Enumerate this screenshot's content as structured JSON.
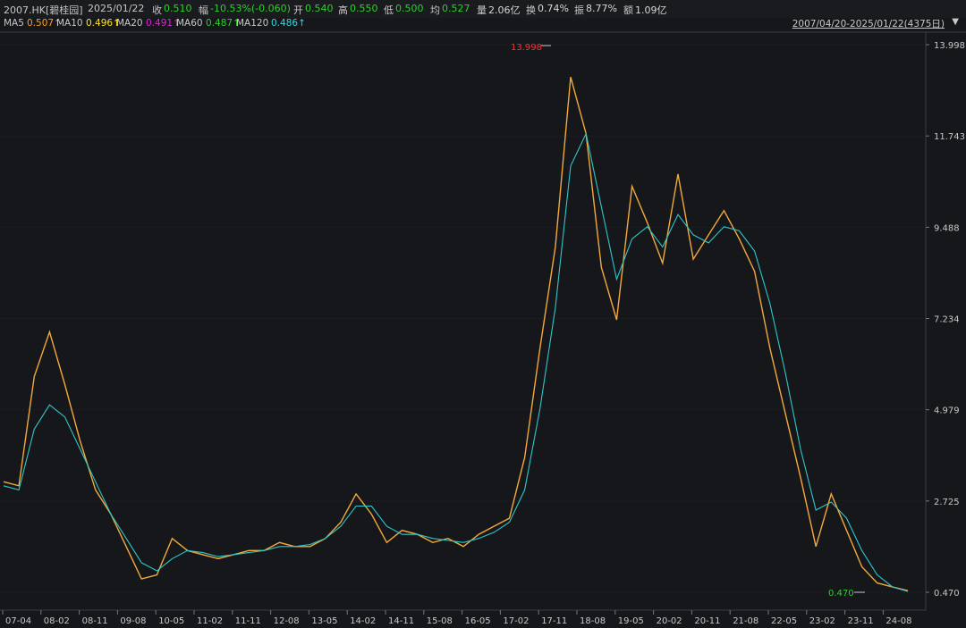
{
  "header": {
    "title": "2007.HK[碧桂园]",
    "date": "2025/01/22",
    "close_label": "收",
    "close": "0.510",
    "change_label": "幅",
    "change": "-10.53%(-0.060)",
    "open_label": "开",
    "open": "0.540",
    "high_label": "高",
    "high": "0.550",
    "low_label": "低",
    "low": "0.500",
    "avg_label": "均",
    "avg": "0.527",
    "volume_label": "量",
    "volume": "2.06亿",
    "turnover_label": "换",
    "turnover": "0.74%",
    "amplitude_label": "振",
    "amplitude": "8.77%",
    "amount_label": "额",
    "amount": "1.09亿"
  },
  "ma": [
    {
      "label": "MA5",
      "value": "0.507↑",
      "color": "#ff9e1f"
    },
    {
      "label": "MA10",
      "value": "0.496↑",
      "color": "#ffe21f"
    },
    {
      "label": "MA20",
      "value": "0.491↑",
      "color": "#e01fe0"
    },
    {
      "label": "MA60",
      "value": "0.487↑",
      "color": "#2bd02b"
    },
    {
      "label": "MA120",
      "value": "0.486↑",
      "color": "#36d6e0"
    }
  ],
  "range_label": "2007/04/20-2025/01/22(4375日)",
  "colors": {
    "up": "#ff3030",
    "down": "#ffd21f",
    "ma_short": "#e8e8e8",
    "ma_long": "#2ec7c9",
    "grid": "#2a2c33"
  },
  "chart_data": {
    "type": "line",
    "y_ticks": [
      "13.998",
      "11.743",
      "9.488",
      "7.234",
      "4.979",
      "2.725",
      "0.470"
    ],
    "ylim": [
      0.47,
      13.998
    ],
    "x_ticks": [
      "07-04",
      "08-02",
      "08-11",
      "09-08",
      "10-05",
      "11-02",
      "11-11",
      "12-08",
      "13-05",
      "14-02",
      "14-11",
      "15-08",
      "16-05",
      "17-02",
      "17-11",
      "18-08",
      "19-05",
      "20-02",
      "20-11",
      "21-08",
      "22-05",
      "23-02",
      "23-11",
      "24-08"
    ],
    "max_label": "13.998",
    "min_label": "0.470",
    "series": [
      {
        "values": [
          3.2,
          3.1,
          5.8,
          6.9,
          5.6,
          4.2,
          3.0,
          2.4,
          1.6,
          0.8,
          0.9,
          1.8,
          1.5,
          1.4,
          1.3,
          1.4,
          1.5,
          1.5,
          1.7,
          1.6,
          1.6,
          1.8,
          2.2,
          2.9,
          2.4,
          1.7,
          2.0,
          1.9,
          1.7,
          1.8,
          1.6,
          1.9,
          2.1,
          2.3,
          3.8,
          6.5,
          9.0,
          13.2,
          11.8,
          8.5,
          7.2,
          10.5,
          9.6,
          8.6,
          10.8,
          8.7,
          9.3,
          9.9,
          9.2,
          8.4,
          6.5,
          4.9,
          3.3,
          1.6,
          2.9,
          2.0,
          1.1,
          0.7,
          0.6,
          0.51
        ]
      },
      {
        "values": [
          3.1,
          3.0,
          4.5,
          5.1,
          4.8,
          4.0,
          3.2,
          2.4,
          1.8,
          1.2,
          1.0,
          1.3,
          1.5,
          1.45,
          1.35,
          1.4,
          1.45,
          1.5,
          1.6,
          1.6,
          1.65,
          1.8,
          2.1,
          2.6,
          2.6,
          2.1,
          1.9,
          1.9,
          1.8,
          1.75,
          1.7,
          1.8,
          1.95,
          2.2,
          3.0,
          5.0,
          7.5,
          11.0,
          11.8,
          10.0,
          8.2,
          9.2,
          9.5,
          9.0,
          9.8,
          9.3,
          9.1,
          9.5,
          9.4,
          8.9,
          7.6,
          5.9,
          4.0,
          2.5,
          2.7,
          2.3,
          1.5,
          0.9,
          0.6,
          0.49
        ]
      }
    ]
  }
}
